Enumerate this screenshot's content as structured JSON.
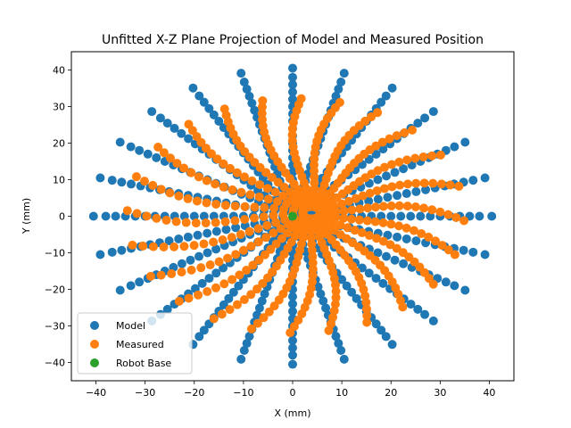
{
  "chart_data": {
    "type": "scatter",
    "title": "Unfitted X-Z Plane Projection of Model and Measured Position",
    "xlabel": "X (mm)",
    "ylabel": "Y (mm)",
    "xlim": [
      -45,
      45
    ],
    "ylim": [
      -45,
      45
    ],
    "xticks": [
      -40,
      -30,
      -20,
      -10,
      0,
      10,
      20,
      30,
      40
    ],
    "yticks": [
      -40,
      -30,
      -20,
      -10,
      0,
      10,
      20,
      30,
      40
    ],
    "xtick_labels": [
      "−40",
      "−30",
      "−20",
      "−10",
      "0",
      "10",
      "20",
      "30",
      "40"
    ],
    "ytick_labels": [
      "−40",
      "−30",
      "−20",
      "−10",
      "0",
      "10",
      "20",
      "30",
      "40"
    ],
    "grid": false,
    "legend_position": "lower-left",
    "series": [
      {
        "name": "Model",
        "color": "#1f77b4",
        "pattern": "radial-spokes",
        "angles_deg": [
          0,
          15,
          30,
          45,
          60,
          75,
          90,
          105,
          120,
          135,
          150,
          165,
          180,
          195,
          210,
          225,
          240,
          255,
          270,
          285,
          300,
          315,
          330,
          345
        ],
        "radii_mm": [
          2,
          4,
          6,
          8,
          10,
          12,
          14,
          16,
          18,
          20,
          22,
          24,
          26,
          28,
          30,
          32,
          34,
          36,
          38,
          40.5
        ],
        "offset_mm": [
          0,
          0
        ]
      },
      {
        "name": "Measured",
        "color": "#ff7f0e",
        "pattern": "distorted-radial-spokes",
        "angles_deg": [
          0,
          15,
          30,
          45,
          60,
          75,
          90,
          105,
          120,
          135,
          150,
          165,
          180,
          195,
          210,
          225,
          240,
          255,
          270,
          285,
          300,
          315,
          330,
          345
        ],
        "radii_mm": [
          2,
          4,
          6,
          8,
          10,
          12,
          14,
          16,
          18,
          20,
          22,
          24,
          26,
          28,
          30,
          32,
          34,
          36,
          38
        ],
        "offset_mm": [
          4,
          1
        ]
      },
      {
        "name": "Robot Base",
        "color": "#2ca02c",
        "points": [
          [
            0,
            0
          ]
        ]
      }
    ]
  }
}
